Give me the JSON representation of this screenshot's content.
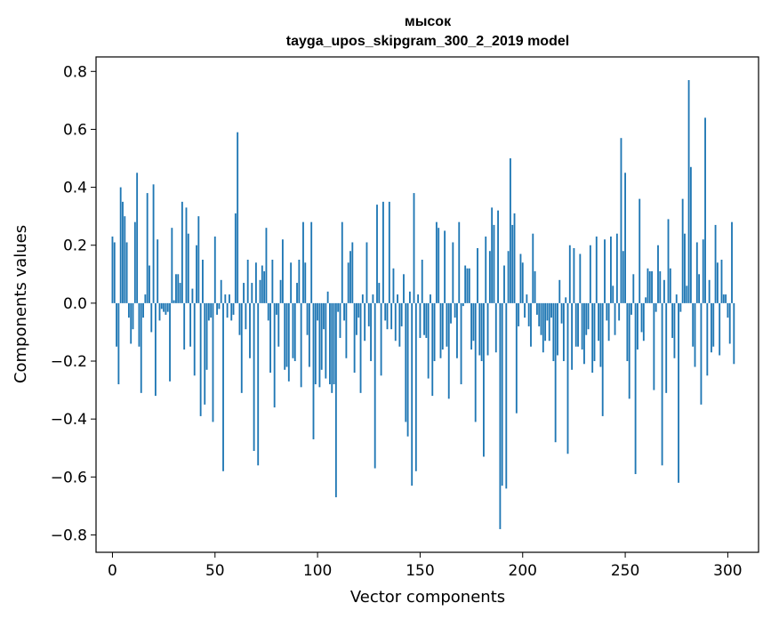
{
  "chart_data": {
    "type": "bar",
    "title_line1": "мысок",
    "title_line2": "tayga_upos_skipgram_300_2_2019 model",
    "xlabel": "Vector components",
    "ylabel": "Components values",
    "xlim": [
      -8,
      315
    ],
    "ylim": [
      -0.86,
      0.85
    ],
    "xticks": [
      0,
      50,
      100,
      150,
      200,
      250,
      300
    ],
    "yticks": [
      0.8,
      0.6,
      0.4,
      0.2,
      0.0,
      -0.2,
      -0.4,
      -0.6,
      -0.8
    ],
    "ytick_labels": [
      "0.8",
      "0.6",
      "0.4",
      "0.2",
      "0.0",
      "−0.2",
      "−0.4",
      "−0.6",
      "−0.8"
    ],
    "grid": false,
    "bar_color": "#1f77b4",
    "values": [
      0.23,
      0.21,
      -0.15,
      -0.28,
      0.4,
      0.35,
      0.3,
      0.21,
      -0.05,
      -0.14,
      -0.09,
      0.28,
      0.45,
      -0.15,
      -0.31,
      -0.05,
      0.03,
      0.38,
      0.13,
      -0.1,
      0.41,
      -0.32,
      0.22,
      -0.06,
      -0.02,
      -0.03,
      -0.04,
      -0.03,
      -0.27,
      0.26,
      0.01,
      0.1,
      0.1,
      0.07,
      0.35,
      -0.16,
      0.33,
      0.24,
      -0.15,
      0.05,
      -0.25,
      0.2,
      0.3,
      -0.39,
      0.15,
      -0.35,
      -0.23,
      -0.06,
      -0.05,
      -0.41,
      0.23,
      -0.04,
      -0.02,
      0.08,
      -0.58,
      0.03,
      -0.05,
      0.03,
      -0.06,
      -0.04,
      0.31,
      0.59,
      -0.11,
      -0.31,
      0.07,
      -0.09,
      0.15,
      -0.19,
      0.07,
      -0.51,
      0.14,
      -0.56,
      0.08,
      0.13,
      0.11,
      0.26,
      -0.06,
      -0.24,
      0.15,
      -0.36,
      -0.04,
      -0.15,
      0.08,
      0.22,
      -0.23,
      -0.22,
      -0.27,
      0.14,
      -0.19,
      -0.2,
      0.07,
      0.15,
      -0.29,
      0.28,
      0.14,
      -0.11,
      -0.22,
      0.28,
      -0.47,
      -0.28,
      -0.06,
      -0.29,
      -0.23,
      -0.09,
      -0.26,
      0.04,
      -0.28,
      -0.31,
      -0.28,
      -0.67,
      -0.03,
      -0.12,
      0.28,
      -0.06,
      -0.19,
      0.14,
      0.18,
      0.21,
      -0.24,
      -0.11,
      -0.05,
      -0.31,
      0.03,
      -0.13,
      0.21,
      -0.08,
      -0.2,
      0.03,
      -0.57,
      0.34,
      0.07,
      -0.25,
      0.35,
      -0.06,
      -0.09,
      0.35,
      -0.09,
      0.12,
      -0.13,
      0.03,
      -0.15,
      -0.08,
      0.1,
      -0.41,
      -0.46,
      0.04,
      -0.63,
      0.38,
      -0.58,
      0.03,
      -0.12,
      0.15,
      -0.11,
      -0.12,
      -0.26,
      0.03,
      -0.32,
      -0.2,
      0.28,
      0.26,
      -0.19,
      -0.16,
      0.25,
      -0.15,
      -0.33,
      -0.07,
      0.21,
      -0.05,
      -0.19,
      0.28,
      -0.28,
      -0.01,
      0.13,
      0.12,
      0.12,
      -0.16,
      -0.13,
      -0.41,
      0.19,
      -0.18,
      -0.2,
      -0.53,
      0.23,
      -0.18,
      0.18,
      0.33,
      0.27,
      -0.17,
      0.32,
      -0.78,
      -0.63,
      0.13,
      -0.64,
      0.18,
      0.5,
      0.27,
      0.31,
      -0.38,
      -0.08,
      0.17,
      0.14,
      -0.05,
      0.03,
      -0.08,
      -0.15,
      0.24,
      0.11,
      -0.04,
      -0.08,
      -0.11,
      -0.17,
      -0.13,
      -0.06,
      -0.13,
      -0.05,
      -0.2,
      -0.48,
      -0.18,
      0.08,
      -0.07,
      -0.2,
      0.02,
      -0.52,
      0.2,
      -0.23,
      0.19,
      -0.15,
      -0.15,
      0.17,
      -0.16,
      -0.21,
      -0.11,
      -0.09,
      0.2,
      -0.24,
      -0.2,
      0.23,
      -0.13,
      -0.22,
      -0.39,
      0.22,
      -0.06,
      -0.13,
      0.23,
      0.06,
      -0.11,
      0.24,
      -0.06,
      0.57,
      0.18,
      0.45,
      -0.2,
      -0.33,
      -0.04,
      0.1,
      -0.59,
      -0.16,
      0.36,
      -0.1,
      -0.13,
      0.02,
      0.12,
      0.11,
      0.11,
      -0.3,
      -0.03,
      0.2,
      0.11,
      -0.56,
      0.08,
      -0.31,
      0.29,
      0.12,
      -0.12,
      -0.19,
      0.03,
      -0.62,
      -0.03,
      0.36,
      0.24,
      0.06,
      0.77,
      0.47,
      -0.15,
      -0.22,
      0.21,
      0.1,
      -0.35,
      0.22,
      0.64,
      -0.25,
      0.08,
      -0.17,
      -0.15,
      0.27,
      0.14,
      -0.18,
      0.15,
      0.03,
      0.03,
      -0.05,
      -0.14,
      0.28,
      -0.21
    ]
  }
}
